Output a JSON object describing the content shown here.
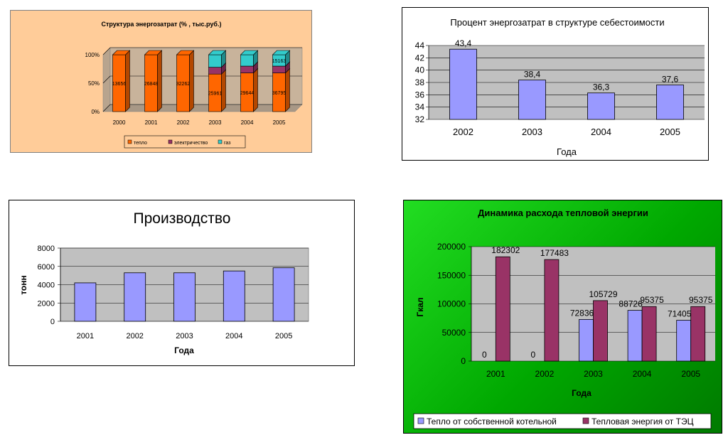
{
  "chart_data": [
    {
      "type": "bar",
      "stacked": true,
      "percent": true,
      "title": "Структура энергозатрат (% , тыс.руб.)",
      "categories": [
        "2000",
        "2001",
        "2002",
        "2003",
        "2004",
        "2005"
      ],
      "y_ticks": [
        "0%",
        "50%",
        "100%"
      ],
      "series": [
        {
          "name": "тепло",
          "values": [
            100,
            100,
            100,
            66,
            68,
            68
          ],
          "labels": [
            "13656",
            "26848",
            "32262",
            "25961",
            "29644",
            "36795"
          ]
        },
        {
          "name": "электричество",
          "values": [
            0,
            0,
            0,
            12,
            12,
            12
          ],
          "labels": [
            "",
            "",
            "",
            "",
            "",
            ""
          ]
        },
        {
          "name": "газ",
          "values": [
            0,
            0,
            0,
            22,
            20,
            20
          ],
          "labels": [
            "",
            "",
            "",
            "",
            "",
            "15163"
          ]
        }
      ],
      "colors": {
        "bg": "#FFCC99",
        "wall": "#C8B39B",
        "teplo": "#FF6600",
        "elec": "#993366",
        "gas": "#33CCCC"
      },
      "legend_position": "bottom"
    },
    {
      "type": "bar",
      "title": "Процент энергозатрат в структуре себестоимости",
      "xlabel": "Года",
      "categories": [
        "2002",
        "2003",
        "2004",
        "2005"
      ],
      "values": [
        43.4,
        38.4,
        36.3,
        37.6
      ],
      "value_labels": [
        "43,4",
        "38,4",
        "36,3",
        "37,6"
      ],
      "ylim": [
        32,
        44
      ],
      "y_ticks": [
        "32",
        "34",
        "36",
        "38",
        "40",
        "42",
        "44"
      ],
      "colors": {
        "bar": "#9999FF",
        "plot": "#C0C0C0"
      },
      "grid": true
    },
    {
      "type": "bar",
      "title": "Производство",
      "xlabel": "Года",
      "ylabel": "тонн",
      "categories": [
        "2001",
        "2002",
        "2003",
        "2004",
        "2005"
      ],
      "values": [
        4200,
        5300,
        5300,
        5500,
        5850
      ],
      "ylim": [
        0,
        8000
      ],
      "y_ticks": [
        "0",
        "2000",
        "4000",
        "6000",
        "8000"
      ],
      "colors": {
        "bar": "#9999FF",
        "plot": "#C0C0C0"
      },
      "grid": true
    },
    {
      "type": "bar",
      "title": "Динамика расхода тепловой энергии",
      "xlabel": "Года",
      "ylabel": "Гкал",
      "categories": [
        "2001",
        "2002",
        "2003",
        "2004",
        "2005"
      ],
      "series": [
        {
          "name": "Тепло от собственной котельной",
          "values": [
            0,
            0,
            72836,
            88726,
            71405
          ],
          "labels": [
            "0",
            "0",
            "72836",
            "88726",
            "71405"
          ]
        },
        {
          "name": "Тепловая энергия от ТЭЦ",
          "values": [
            182302,
            177483,
            105729,
            95375,
            95375
          ],
          "labels": [
            "182302",
            "177483",
            "105729",
            "95375",
            "95375"
          ]
        }
      ],
      "ylim": [
        0,
        200000
      ],
      "y_ticks": [
        "0",
        "50000",
        "100000",
        "150000",
        "200000"
      ],
      "colors": {
        "bg_light": "#22DD22",
        "bg_dark": "#007A00",
        "s1": "#9999FF",
        "s2": "#993366",
        "plot": "#C0C0C0"
      },
      "legend_position": "bottom",
      "grid": true
    }
  ]
}
